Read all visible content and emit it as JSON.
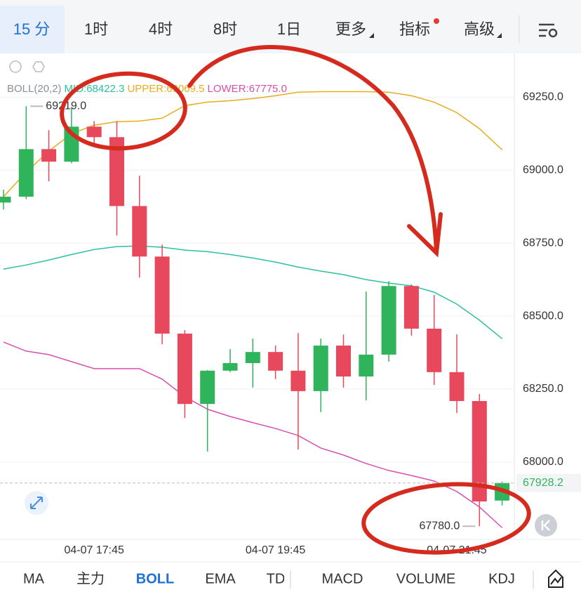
{
  "tabs": [
    "15 分",
    "1时",
    "4时",
    "8时",
    "1日",
    "更多",
    "指标",
    "高级"
  ],
  "indicator_tabs": [
    "MA",
    "主力",
    "BOLL",
    "EMA",
    "TD",
    "MACD",
    "VOLUME",
    "KDJ"
  ],
  "chart_data": {
    "type": "candlestick",
    "categories": [
      null,
      null,
      null,
      null,
      "04-07 17:45",
      null,
      null,
      null,
      null,
      null,
      null,
      null,
      "04-07 19:45",
      null,
      null,
      null,
      null,
      null,
      null,
      null,
      "04-07 21:45",
      null,
      null
    ],
    "open": [
      68889,
      68909,
      69072,
      69029,
      69149,
      69113,
      68877,
      68704,
      68440,
      68199,
      68313,
      68339,
      68377,
      68313,
      68243,
      68399,
      68293,
      68368,
      68603,
      68457,
      68308,
      68209,
      67868
    ],
    "high": [
      68933,
      69219,
      69137,
      69216,
      69168,
      69168,
      68981,
      68745,
      68452,
      68315,
      68387,
      68423,
      68399,
      68442,
      68423,
      68437,
      68584,
      68620,
      68608,
      68572,
      68437,
      68233,
      67933
    ],
    "low": [
      68865,
      68901,
      68962,
      69024,
      69089,
      68776,
      68632,
      68404,
      68151,
      68036,
      68308,
      68255,
      68284,
      68043,
      68171,
      68255,
      68211,
      68344,
      68433,
      68264,
      68168,
      67780,
      67851
    ],
    "close": [
      68909,
      69072,
      69029,
      69149,
      69113,
      68877,
      68704,
      68440,
      68199,
      68313,
      68339,
      68377,
      68313,
      68243,
      68399,
      68293,
      68368,
      68603,
      68457,
      68308,
      68209,
      67865,
      67928.2
    ],
    "up_color": "#2fb45c",
    "down_color": "#e8485b",
    "legend": [
      {
        "label": "BOLL(20,2)",
        "color": "#8a8f99"
      },
      {
        "label": "MID:68422.3",
        "color": "#2bc1a0"
      },
      {
        "label": "UPPER:69069.5",
        "color": "#e8ac1c"
      },
      {
        "label": "LOWER:67775.0",
        "color": "#d94fae"
      }
    ],
    "lines": [
      {
        "color": "#2bc1a0",
        "values": [
          68661,
          68675,
          68692,
          68711,
          68728,
          68738,
          68740,
          68736,
          68726,
          68721,
          68711,
          68699,
          68685,
          68668,
          68654,
          68642,
          68625,
          68613,
          68604,
          68582,
          68541,
          68486,
          68422.3
        ]
      },
      {
        "color": "#e8ac1c",
        "values": [
          68909,
          68993,
          69065,
          69125,
          69154,
          69166,
          69168,
          69178,
          69221,
          69233,
          69238,
          69245,
          69255,
          69267,
          69269,
          69269,
          69269,
          69267,
          69255,
          69233,
          69197,
          69142,
          69069.5
        ]
      },
      {
        "color": "#d94fae",
        "values": [
          68411,
          68380,
          68368,
          68344,
          68320,
          68320,
          68320,
          68284,
          68224,
          68181,
          68156,
          68135,
          68115,
          68091,
          68048,
          68024,
          67995,
          67971,
          67954,
          67935,
          67899,
          67846,
          67775.0
        ]
      }
    ],
    "max_label": {
      "value": 69219,
      "label": "69219.0"
    },
    "min_label": {
      "value": 67780,
      "label": "67780.0"
    },
    "last_price": {
      "value": 67928.2,
      "label": "67928.2"
    },
    "ylim": [
      67735,
      69400
    ],
    "yticks": [
      {
        "value": 68000,
        "label": "68000.0"
      },
      {
        "value": 68250,
        "label": "68250.0"
      },
      {
        "value": 68500,
        "label": "68500.0"
      },
      {
        "value": 68750,
        "label": "68750.0"
      },
      {
        "value": 69000,
        "label": "69000.0"
      },
      {
        "value": 69250,
        "label": "69250.0"
      }
    ],
    "grid": true
  }
}
